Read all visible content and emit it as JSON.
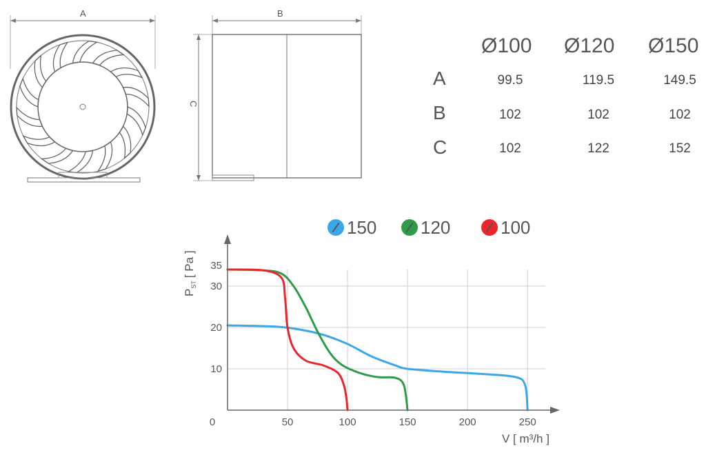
{
  "drawing": {
    "dim_a": "A",
    "dim_b": "B",
    "dim_c": "C"
  },
  "table": {
    "columns": [
      "Ø100",
      "Ø120",
      "Ø150"
    ],
    "rows": [
      {
        "label": "A",
        "values": [
          "99.5",
          "119.5",
          "149.5"
        ]
      },
      {
        "label": "B",
        "values": [
          "102",
          "102",
          "102"
        ]
      },
      {
        "label": "C",
        "values": [
          "102",
          "122",
          "152"
        ]
      }
    ]
  },
  "legend": [
    {
      "label": "150",
      "color": "#3aa7ea"
    },
    {
      "label": "120",
      "color": "#2e9b46"
    },
    {
      "label": "100",
      "color": "#e8262b"
    }
  ],
  "chart_data": {
    "type": "line",
    "xlabel": "V [ m³/h ]",
    "ylabel": "P",
    "ylabel_sub": "ST",
    "ylabel_unit": "[ Pa ]",
    "xlim": [
      0,
      270
    ],
    "ylim": [
      0,
      40
    ],
    "x_ticks": [
      0,
      50,
      100,
      150,
      200,
      250
    ],
    "y_ticks": [
      10,
      20,
      30,
      35
    ],
    "grid": true,
    "series": [
      {
        "name": "150",
        "color": "#3aa7ea",
        "x": [
          0,
          40,
          60,
          80,
          100,
          120,
          140,
          150,
          180,
          210,
          240,
          248,
          250
        ],
        "y": [
          20.5,
          20.2,
          19.5,
          18.2,
          16,
          13,
          10.8,
          10,
          9.3,
          8.8,
          8,
          6,
          0
        ]
      },
      {
        "name": "120",
        "color": "#2e9b46",
        "x": [
          0,
          30,
          45,
          55,
          65,
          75,
          85,
          95,
          110,
          125,
          140,
          147,
          150
        ],
        "y": [
          34,
          33.8,
          33,
          30,
          25,
          19,
          14,
          11,
          9,
          8,
          7.8,
          6,
          0
        ]
      },
      {
        "name": "100",
        "color": "#e8262b",
        "x": [
          0,
          30,
          45,
          48,
          50,
          55,
          65,
          80,
          92,
          97,
          99,
          100
        ],
        "y": [
          34,
          33.8,
          32,
          27,
          20,
          15,
          12,
          10.8,
          9,
          6,
          3,
          0
        ]
      }
    ]
  }
}
